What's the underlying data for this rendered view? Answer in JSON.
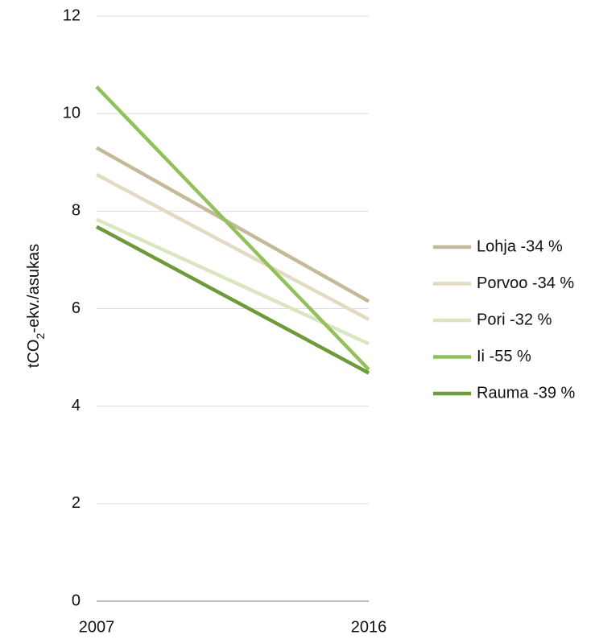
{
  "chart_data": {
    "type": "line",
    "x": [
      "2007",
      "2016"
    ],
    "ylabel": {
      "prefix": "tCO",
      "subscript": "2",
      "suffix": "-ekv./asukas"
    },
    "ylim": [
      0,
      12
    ],
    "yticks": [
      "0",
      "2",
      "4",
      "6",
      "8",
      "10",
      "12"
    ],
    "grid": true,
    "legend_position": "right",
    "series": [
      {
        "name": "Lohja -34 %",
        "values": [
          9.3,
          6.15
        ],
        "color": "#c4b998"
      },
      {
        "name": "Porvoo -34 %",
        "values": [
          8.75,
          5.78
        ],
        "color": "#e2dac2"
      },
      {
        "name": "Pori -32 %",
        "values": [
          7.83,
          5.28
        ],
        "color": "#d9e6c0"
      },
      {
        "name": "Ii -55 %",
        "values": [
          10.55,
          4.75
        ],
        "color": "#92c05a"
      },
      {
        "name": "Rauma -39 %",
        "values": [
          7.68,
          4.68
        ],
        "color": "#6f9a3a"
      }
    ]
  }
}
